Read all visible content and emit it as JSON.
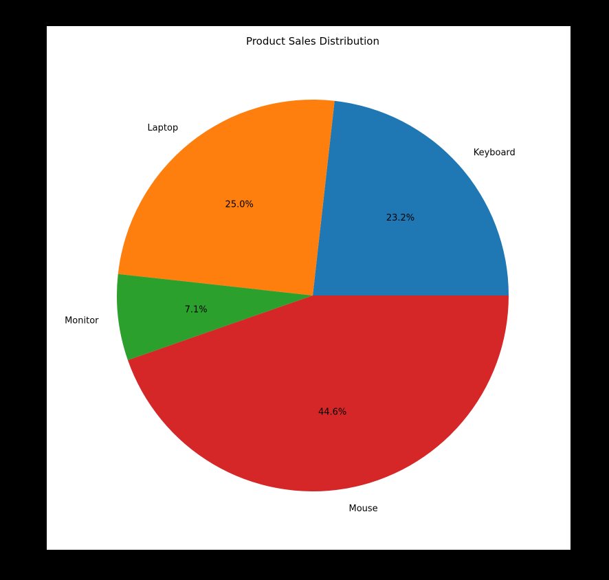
{
  "chart_data": {
    "type": "pie",
    "title": "Product Sales Distribution",
    "slices": [
      {
        "label": "Keyboard",
        "value": 23.2,
        "pct_label": "23.2%",
        "color": "#1f77b4"
      },
      {
        "label": "Laptop",
        "value": 25.0,
        "pct_label": "25.0%",
        "color": "#ff7f0e"
      },
      {
        "label": "Monitor",
        "value": 7.1,
        "pct_label": "7.1%",
        "color": "#2ca02c"
      },
      {
        "label": "Mouse",
        "value": 44.6,
        "pct_label": "44.6%",
        "color": "#d62728"
      }
    ],
    "start_angle": 0,
    "direction": "counterclockwise"
  }
}
